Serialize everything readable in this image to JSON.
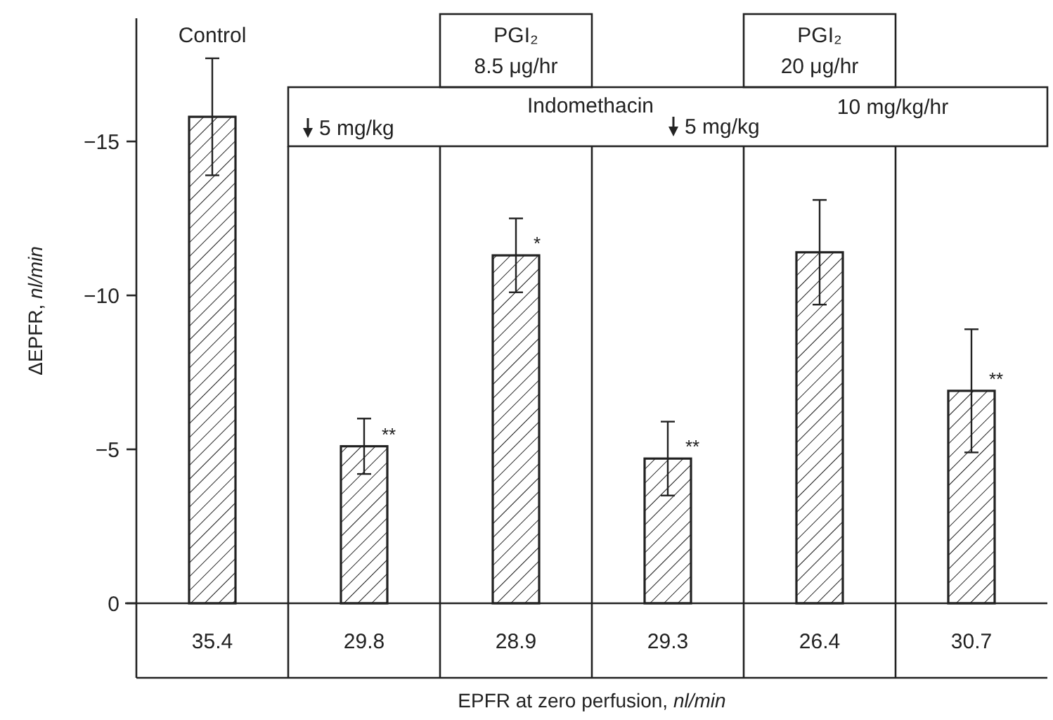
{
  "chart_data": {
    "type": "bar",
    "xlabel": "EPFR at zero perfusion, nl/min",
    "ylabel": "ΔEPFR, nl/min",
    "categories": [
      "35.4",
      "29.8",
      "28.9",
      "29.3",
      "26.4",
      "30.7"
    ],
    "values": [
      -15.8,
      -5.1,
      -11.3,
      -4.7,
      -11.4,
      -6.9
    ],
    "errors": [
      1.9,
      0.9,
      1.2,
      1.2,
      1.7,
      2.0
    ],
    "color": "#222222",
    "ylim": [
      0,
      -19
    ],
    "yticks": [
      0,
      -5,
      -10,
      -15
    ],
    "grid": false,
    "annotations": [
      "Control",
      "PGI₂",
      "8.5 μg/hr",
      "PGI₂",
      "20 μg/hr",
      "Indomethacin",
      "5 mg/kg",
      "5 mg/kg",
      "10 mg/kg/hr",
      {
        "text": "**",
        "x": "29.8",
        "y": -5.1
      },
      {
        "text": "*",
        "x": "28.9",
        "y": -11.3
      },
      {
        "text": "**",
        "x": "29.3",
        "y": -4.7
      },
      {
        "text": "**",
        "x": "30.7",
        "y": -6.9
      }
    ]
  }
}
